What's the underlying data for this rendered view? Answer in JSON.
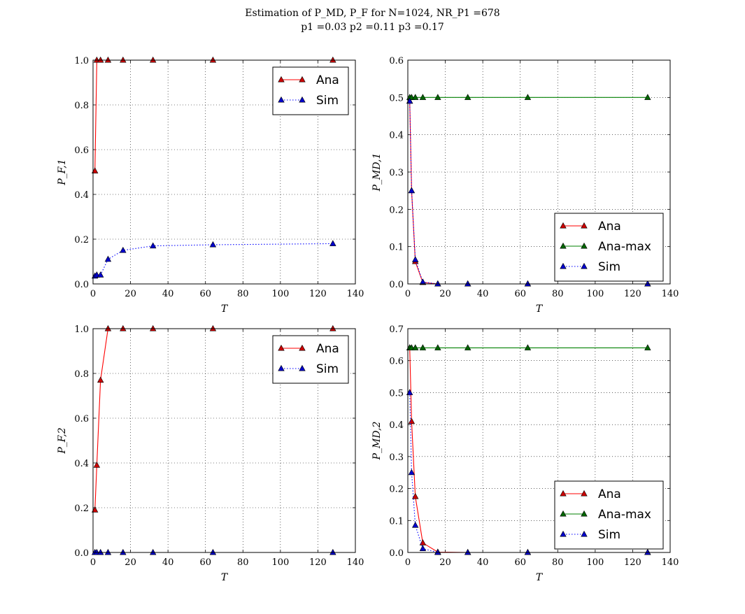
{
  "figure": {
    "title_line1": "Estimation of P_MD, P_F for N=1024, NR_P1 =678",
    "title_line2": "p1 =0.03 p2 =0.11 p3 =0.17"
  },
  "chart_data": [
    {
      "type": "line",
      "xlabel": "T",
      "ylabel": "P_F,1",
      "xlim": [
        0,
        140
      ],
      "ylim": [
        0,
        1.0
      ],
      "xticks": [
        "0",
        "20",
        "40",
        "60",
        "80",
        "100",
        "120",
        "140"
      ],
      "yticks": [
        "0.0",
        "0.2",
        "0.4",
        "0.6",
        "0.8",
        "1.0"
      ],
      "grid": true,
      "legend_position": "top-right",
      "series": [
        {
          "name": "Ana",
          "color": "#ff0000",
          "marker": "#cc0000",
          "dash": "solid",
          "x": [
            1,
            2,
            4,
            8,
            16,
            32,
            64,
            128
          ],
          "y": [
            0.505,
            1.0,
            1.0,
            1.0,
            1.0,
            1.0,
            1.0,
            1.0
          ]
        },
        {
          "name": "Sim",
          "color": "#0000ff",
          "marker": "#0000cc",
          "dash": "dotted",
          "x": [
            1,
            2,
            4,
            8,
            16,
            32,
            64,
            128
          ],
          "y": [
            0.035,
            0.04,
            0.04,
            0.11,
            0.15,
            0.17,
            0.175,
            0.18
          ]
        }
      ]
    },
    {
      "type": "line",
      "xlabel": "T",
      "ylabel": "P_MD,1",
      "xlim": [
        0,
        140
      ],
      "ylim": [
        0,
        0.6
      ],
      "xticks": [
        "0",
        "20",
        "40",
        "60",
        "80",
        "100",
        "120",
        "140"
      ],
      "yticks": [
        "0.0",
        "0.1",
        "0.2",
        "0.3",
        "0.4",
        "0.5",
        "0.6"
      ],
      "grid": true,
      "legend_position": "lower-right",
      "series": [
        {
          "name": "Ana",
          "color": "#ff0000",
          "marker": "#cc0000",
          "dash": "solid",
          "x": [
            1,
            2,
            4,
            8,
            16,
            32,
            64,
            128
          ],
          "y": [
            0.49,
            0.25,
            0.06,
            0.004,
            0.0,
            0.0,
            0.0,
            0.0
          ]
        },
        {
          "name": "Ana-max",
          "color": "#008000",
          "marker": "#006600",
          "dash": "solid",
          "x": [
            1,
            2,
            4,
            8,
            16,
            32,
            64,
            128
          ],
          "y": [
            0.5,
            0.5,
            0.5,
            0.5,
            0.5,
            0.5,
            0.5,
            0.5
          ]
        },
        {
          "name": "Sim",
          "color": "#0000ff",
          "marker": "#0000cc",
          "dash": "dotted",
          "x": [
            1,
            2,
            4,
            8,
            16,
            32,
            64,
            128
          ],
          "y": [
            0.49,
            0.25,
            0.065,
            0.005,
            0.0,
            0.0,
            0.0,
            0.0
          ]
        }
      ]
    },
    {
      "type": "line",
      "xlabel": "T",
      "ylabel": "P_F,2",
      "xlim": [
        0,
        140
      ],
      "ylim": [
        0,
        1.0
      ],
      "xticks": [
        "0",
        "20",
        "40",
        "60",
        "80",
        "100",
        "120",
        "140"
      ],
      "yticks": [
        "0.0",
        "0.2",
        "0.4",
        "0.6",
        "0.8",
        "1.0"
      ],
      "grid": true,
      "legend_position": "top-right",
      "series": [
        {
          "name": "Ana",
          "color": "#ff0000",
          "marker": "#cc0000",
          "dash": "solid",
          "x": [
            1,
            2,
            4,
            8,
            16,
            32,
            64,
            128
          ],
          "y": [
            0.19,
            0.39,
            0.77,
            1.0,
            1.0,
            1.0,
            1.0,
            1.0
          ]
        },
        {
          "name": "Sim",
          "color": "#0000ff",
          "marker": "#0000cc",
          "dash": "dotted",
          "x": [
            1,
            2,
            4,
            8,
            16,
            32,
            64,
            128
          ],
          "y": [
            0.0,
            0.0,
            0.0,
            0.0,
            0.0,
            0.0,
            0.0,
            0.0
          ]
        }
      ]
    },
    {
      "type": "line",
      "xlabel": "T",
      "ylabel": "P_MD,2",
      "xlim": [
        0,
        140
      ],
      "ylim": [
        0,
        0.7
      ],
      "xticks": [
        "0",
        "20",
        "40",
        "60",
        "80",
        "100",
        "120",
        "140"
      ],
      "yticks": [
        "0.0",
        "0.1",
        "0.2",
        "0.3",
        "0.4",
        "0.5",
        "0.6",
        "0.7"
      ],
      "grid": true,
      "legend_position": "lower-right",
      "series": [
        {
          "name": "Ana",
          "color": "#ff0000",
          "marker": "#cc0000",
          "dash": "solid",
          "x": [
            1,
            2,
            4,
            8,
            16,
            32,
            64,
            128
          ],
          "y": [
            0.64,
            0.41,
            0.175,
            0.03,
            0.001,
            0.0,
            0.0,
            0.0
          ]
        },
        {
          "name": "Ana-max",
          "color": "#008000",
          "marker": "#006600",
          "dash": "solid",
          "x": [
            1,
            2,
            4,
            8,
            16,
            32,
            64,
            128
          ],
          "y": [
            0.64,
            0.64,
            0.64,
            0.64,
            0.64,
            0.64,
            0.64,
            0.64
          ]
        },
        {
          "name": "Sim",
          "color": "#0000ff",
          "marker": "#0000cc",
          "dash": "dotted",
          "x": [
            1,
            2,
            4,
            8,
            16,
            32,
            64,
            128
          ],
          "y": [
            0.5,
            0.25,
            0.085,
            0.012,
            0.0,
            0.0,
            0.0,
            0.0
          ]
        }
      ]
    }
  ]
}
